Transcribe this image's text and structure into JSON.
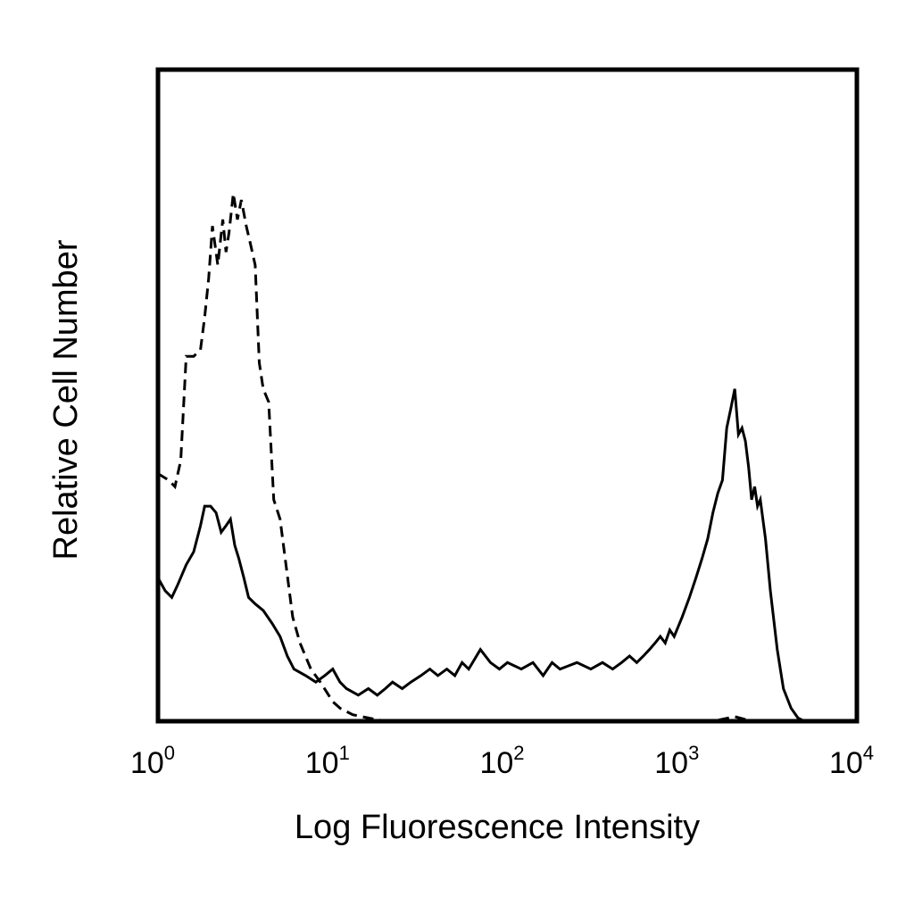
{
  "chart_data": {
    "type": "line",
    "title": "",
    "xlabel": "Log Fluorescence Intensity",
    "ylabel": "Relative Cell Number",
    "x_scale": "log",
    "xlim": [
      1,
      10000
    ],
    "ylim": [
      0,
      100
    ],
    "grid": false,
    "legend": "none",
    "x_ticks": [
      {
        "base": "10",
        "exp": "0"
      },
      {
        "base": "10",
        "exp": "1"
      },
      {
        "base": "10",
        "exp": "2"
      },
      {
        "base": "10",
        "exp": "3"
      },
      {
        "base": "10",
        "exp": "4"
      }
    ],
    "series": [
      {
        "style": "dashed",
        "color": "#000000",
        "points": [
          [
            1.0,
            38
          ],
          [
            1.15,
            37
          ],
          [
            1.25,
            36
          ],
          [
            1.35,
            40
          ],
          [
            1.45,
            56
          ],
          [
            1.6,
            56
          ],
          [
            1.75,
            57
          ],
          [
            1.85,
            62
          ],
          [
            1.95,
            68
          ],
          [
            2.05,
            76
          ],
          [
            2.2,
            70
          ],
          [
            2.35,
            77
          ],
          [
            2.45,
            72
          ],
          [
            2.55,
            75
          ],
          [
            2.7,
            81
          ],
          [
            2.85,
            77
          ],
          [
            3.0,
            80
          ],
          [
            3.2,
            76
          ],
          [
            3.4,
            73
          ],
          [
            3.6,
            70
          ],
          [
            3.8,
            55
          ],
          [
            4.0,
            51
          ],
          [
            4.3,
            49
          ],
          [
            4.6,
            34
          ],
          [
            5.0,
            31
          ],
          [
            5.4,
            24
          ],
          [
            5.9,
            16
          ],
          [
            6.5,
            12
          ],
          [
            7.5,
            8
          ],
          [
            8.5,
            6
          ],
          [
            10.0,
            3
          ],
          [
            11.0,
            2
          ],
          [
            13.0,
            1
          ],
          [
            16.0,
            0.5
          ],
          [
            20.0,
            0
          ],
          [
            50.0,
            0
          ],
          [
            500.0,
            0
          ],
          [
            1500.0,
            0
          ],
          [
            2000.0,
            0.7
          ],
          [
            2500.0,
            0
          ],
          [
            10000.0,
            0
          ]
        ]
      },
      {
        "style": "solid",
        "color": "#000000",
        "points": [
          [
            1.0,
            22
          ],
          [
            1.1,
            20
          ],
          [
            1.2,
            19
          ],
          [
            1.3,
            21
          ],
          [
            1.45,
            24
          ],
          [
            1.6,
            26
          ],
          [
            1.75,
            30
          ],
          [
            1.85,
            33
          ],
          [
            2.0,
            33
          ],
          [
            2.15,
            32
          ],
          [
            2.3,
            29
          ],
          [
            2.45,
            30
          ],
          [
            2.6,
            31
          ],
          [
            2.75,
            27
          ],
          [
            2.9,
            25
          ],
          [
            3.1,
            22
          ],
          [
            3.3,
            19
          ],
          [
            3.6,
            18
          ],
          [
            4.0,
            17
          ],
          [
            4.5,
            15
          ],
          [
            5.0,
            13
          ],
          [
            5.5,
            10
          ],
          [
            6.0,
            8
          ],
          [
            7.0,
            7
          ],
          [
            8.0,
            6
          ],
          [
            9.0,
            7
          ],
          [
            10.0,
            8
          ],
          [
            11.0,
            6
          ],
          [
            12.0,
            5
          ],
          [
            14.0,
            4
          ],
          [
            16.0,
            5
          ],
          [
            18.0,
            4
          ],
          [
            20.0,
            5
          ],
          [
            22.0,
            6
          ],
          [
            25.0,
            5
          ],
          [
            28.0,
            6
          ],
          [
            32.0,
            7
          ],
          [
            36.0,
            8
          ],
          [
            40.0,
            7
          ],
          [
            45.0,
            8
          ],
          [
            50.0,
            7
          ],
          [
            55.0,
            9
          ],
          [
            60.0,
            8
          ],
          [
            70.0,
            11
          ],
          [
            80.0,
            9
          ],
          [
            90.0,
            8
          ],
          [
            100.0,
            9
          ],
          [
            120.0,
            8
          ],
          [
            140.0,
            9
          ],
          [
            160.0,
            7
          ],
          [
            180.0,
            9
          ],
          [
            200.0,
            8
          ],
          [
            250.0,
            9
          ],
          [
            300.0,
            8
          ],
          [
            350.0,
            9
          ],
          [
            400.0,
            8
          ],
          [
            450.0,
            9
          ],
          [
            500.0,
            10
          ],
          [
            550.0,
            9
          ],
          [
            600.0,
            10
          ],
          [
            650.0,
            11
          ],
          [
            700.0,
            12
          ],
          [
            750.0,
            13
          ],
          [
            800.0,
            12
          ],
          [
            850.0,
            14
          ],
          [
            900.0,
            13
          ],
          [
            1000.0,
            16
          ],
          [
            1100.0,
            19
          ],
          [
            1200.0,
            22
          ],
          [
            1300.0,
            25
          ],
          [
            1400.0,
            28
          ],
          [
            1500.0,
            32
          ],
          [
            1600.0,
            35
          ],
          [
            1700.0,
            37
          ],
          [
            1800.0,
            45
          ],
          [
            1900.0,
            48
          ],
          [
            2000.0,
            51
          ],
          [
            2100.0,
            44
          ],
          [
            2200.0,
            45
          ],
          [
            2300.0,
            43
          ],
          [
            2400.0,
            39
          ],
          [
            2500.0,
            34
          ],
          [
            2600.0,
            36
          ],
          [
            2700.0,
            33
          ],
          [
            2800.0,
            34
          ],
          [
            3000.0,
            28
          ],
          [
            3200.0,
            20
          ],
          [
            3500.0,
            11
          ],
          [
            3800.0,
            5
          ],
          [
            4200.0,
            2
          ],
          [
            4600.0,
            0.5
          ],
          [
            5000.0,
            0
          ],
          [
            10000.0,
            0
          ]
        ]
      }
    ]
  }
}
